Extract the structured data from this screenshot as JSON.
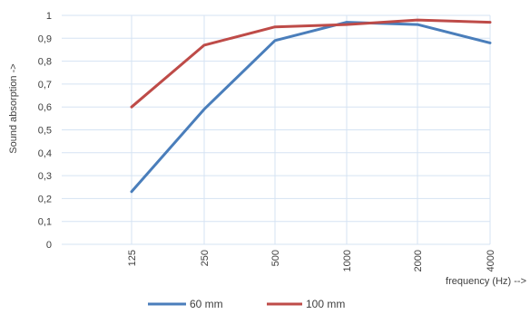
{
  "chart_data": {
    "type": "line",
    "categories": [
      "125",
      "250",
      "500",
      "1000",
      "2000",
      "4000"
    ],
    "series": [
      {
        "name": "60 mm",
        "values": [
          0.23,
          0.59,
          0.89,
          0.97,
          0.96,
          0.88
        ],
        "color": "#4a7ebb"
      },
      {
        "name": "100 mm",
        "values": [
          0.6,
          0.87,
          0.95,
          0.96,
          0.98,
          0.97
        ],
        "color": "#be4b48"
      }
    ],
    "title": "",
    "xlabel": "frequency  (Hz) -->",
    "ylabel": "Sound absorption ->",
    "ylim": [
      0,
      1
    ],
    "yticks": [
      "0",
      "0,1",
      "0,2",
      "0,3",
      "0,4",
      "0,5",
      "0,6",
      "0,7",
      "0,8",
      "0,9",
      "1"
    ],
    "grid": true,
    "legend": "bottom"
  }
}
